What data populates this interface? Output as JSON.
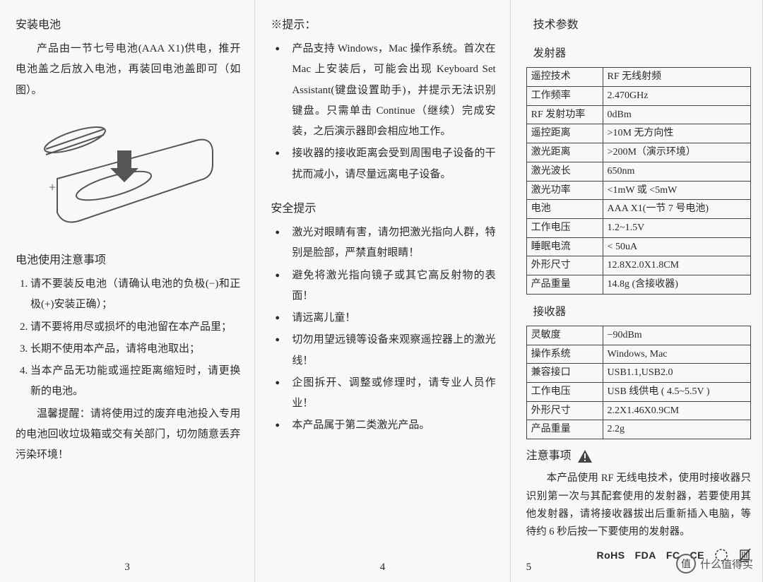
{
  "col1": {
    "h_install": "安装电池",
    "p_install": "产品由一节七号电池(AAA X1)供电，推开电池盖之后放入电池，再装回电池盖即可（如图）。",
    "h_notice": "电池使用注意事项",
    "items": [
      "请不要装反电池（请确认电池的负极(−)和正极(+)安装正确）；",
      "请不要将用尽或损坏的电池留在本产品里；",
      "长期不使用本产品，请将电池取出；",
      "当本产品无功能或遥控距离缩短时，请更换新的电池。"
    ],
    "tip": "温馨提醒：请将使用过的废弃电池投入专用的电池回收垃圾箱或交有关部门，切勿随意丢弃污染环境！",
    "page": "3"
  },
  "col2": {
    "h_tip": "※提示：",
    "tips": [
      "产品支持 Windows，Mac 操作系统。首次在 Mac 上安装后，可能会出现 Keyboard Set Assistant(键盘设置助手)，并提示无法识别键盘。只需单击 Continue（继续）完成安装，之后演示器即会相应地工作。",
      "接收器的接收距离会受到周围电子设备的干扰而减小，请尽量远离电子设备。"
    ],
    "h_safe": "安全提示",
    "safes": [
      "激光对眼睛有害，请勿把激光指向人群，特别是脸部，严禁直射眼睛！",
      "避免将激光指向镜子或其它高反射物的表面！",
      "请远离儿童！",
      "切勿用望远镜等设备来观察遥控器上的激光线！",
      "企图拆开、调整或修理时，请专业人员作业！",
      "本产品属于第二类激光产品。"
    ],
    "page": "4"
  },
  "col3": {
    "h_spec": "技术参数",
    "h_tx": "发射器",
    "tx_rows": [
      [
        "遥控技术",
        "RF 无线射频"
      ],
      [
        "工作频率",
        "2.470GHz"
      ],
      [
        "RF 发射功率",
        "0dBm"
      ],
      [
        "遥控距离",
        ">10M 无方向性"
      ],
      [
        "激光距离",
        ">200M（演示环境）"
      ],
      [
        "激光波长",
        "650nm"
      ],
      [
        "激光功率",
        "<1mW 或 <5mW"
      ],
      [
        "电池",
        "AAA X1(一节 7 号电池)"
      ],
      [
        "工作电压",
        "1.2~1.5V"
      ],
      [
        "睡眠电流",
        "< 50uA"
      ],
      [
        "外形尺寸",
        "12.8X2.0X1.8CM"
      ],
      [
        "产品重量",
        "14.8g (含接收器)"
      ]
    ],
    "h_rx": "接收器",
    "rx_rows": [
      [
        "灵敏度",
        "−90dBm"
      ],
      [
        "操作系统",
        "Windows, Mac"
      ],
      [
        "兼容接口",
        "USB1.1,USB2.0"
      ],
      [
        "工作电压",
        "USB 线供电 ( 4.5~5.5V )"
      ],
      [
        "外形尺寸",
        "2.2X1.46X0.9CM"
      ],
      [
        "产品重量",
        "2.2g"
      ]
    ],
    "h_note": "注意事项",
    "note": "本产品使用 RF 无线电技术，使用时接收器只识别第一次与其配套使用的发射器，若要使用其他发射器，请将接收器拔出后重新插入电脑，等待约 6 秒后按一下要使用的发射器。",
    "logos": [
      "RoHS",
      "FDA",
      "FC",
      "CE"
    ],
    "page": "5"
  },
  "watermark": "什么值得买",
  "wm_icon": "值",
  "colors": {
    "text": "#2a2a2a",
    "border": "#444444",
    "sep": "#d8d6d2",
    "bg": "#f8f8f7"
  }
}
